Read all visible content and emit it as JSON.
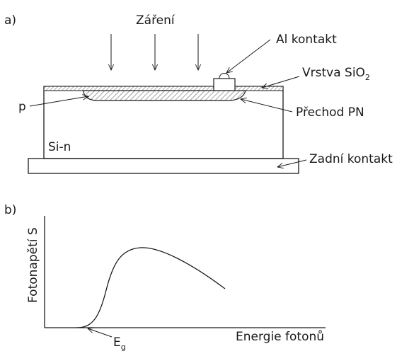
{
  "part_a": {
    "label": "a)",
    "radiation": "Záření",
    "al_contact": "Al kontakt",
    "oxide_layer": "Vrstva SiO",
    "oxide_subscript": "2",
    "p_region": "p",
    "pn_junction": "Přechod PN",
    "substrate": "Si-n",
    "back_contact": "Zadní kontakt"
  },
  "part_b": {
    "label": "b)",
    "y_axis": "Fotonapětí S",
    "x_axis": "Energie fotonů",
    "eg_letter": "E",
    "eg_subscript": "g"
  }
}
